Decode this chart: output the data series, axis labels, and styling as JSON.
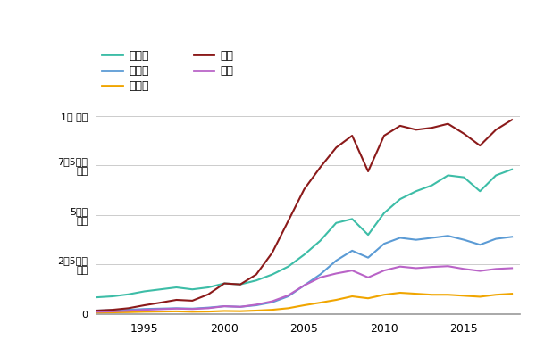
{
  "years": [
    1992,
    1993,
    1994,
    1995,
    1996,
    1997,
    1998,
    1999,
    2000,
    2001,
    2002,
    2003,
    2004,
    2005,
    2006,
    2007,
    2008,
    2009,
    2010,
    2011,
    2012,
    2013,
    2014,
    2015,
    2016,
    2017,
    2018
  ],
  "소비재": [
    85,
    90,
    100,
    115,
    125,
    135,
    125,
    135,
    155,
    150,
    170,
    200,
    240,
    300,
    370,
    460,
    480,
    400,
    510,
    580,
    620,
    650,
    700,
    690,
    620,
    700,
    730
  ],
  "생산재": [
    18,
    20,
    22,
    26,
    28,
    30,
    28,
    33,
    40,
    37,
    45,
    60,
    90,
    145,
    200,
    270,
    320,
    285,
    355,
    385,
    375,
    385,
    395,
    375,
    350,
    380,
    390
  ],
  "원자재": [
    8,
    9,
    10,
    12,
    13,
    14,
    12,
    13,
    16,
    15,
    18,
    22,
    30,
    45,
    58,
    72,
    90,
    80,
    98,
    108,
    103,
    98,
    98,
    93,
    88,
    98,
    103
  ],
  "섬유": [
    12,
    14,
    17,
    22,
    25,
    28,
    26,
    30,
    40,
    37,
    48,
    65,
    95,
    145,
    185,
    205,
    220,
    185,
    220,
    240,
    232,
    238,
    242,
    228,
    218,
    228,
    232
  ],
  "부품": [
    18,
    22,
    30,
    45,
    58,
    72,
    68,
    100,
    155,
    150,
    200,
    310,
    470,
    630,
    740,
    840,
    900,
    720,
    900,
    950,
    930,
    940,
    960,
    910,
    850,
    930,
    980
  ],
  "yticks": [
    0,
    250,
    500,
    750,
    1000
  ],
  "ytick_labels": [
    "0",
    "2천5백억\n달러",
    "5천억\n달러",
    "7천5백억\n달러",
    "1조 달러"
  ],
  "ylim": [
    0,
    1080
  ],
  "xlim_min": 1992,
  "xlim_max": 2018.5,
  "xticks": [
    1995,
    2000,
    2005,
    2010,
    2015
  ],
  "colors": {
    "소비재": "#3dbda7",
    "생산재": "#5b9bd5",
    "원자재": "#f0a500",
    "섬유": "#b963c7",
    "부품": "#8b1a1a"
  },
  "background_color": "#ffffff",
  "grid_color": "#cccccc",
  "legend_order_col1": [
    "소비재",
    "원자재",
    "섬유"
  ],
  "legend_order_col2": [
    "생산재",
    "부품"
  ]
}
